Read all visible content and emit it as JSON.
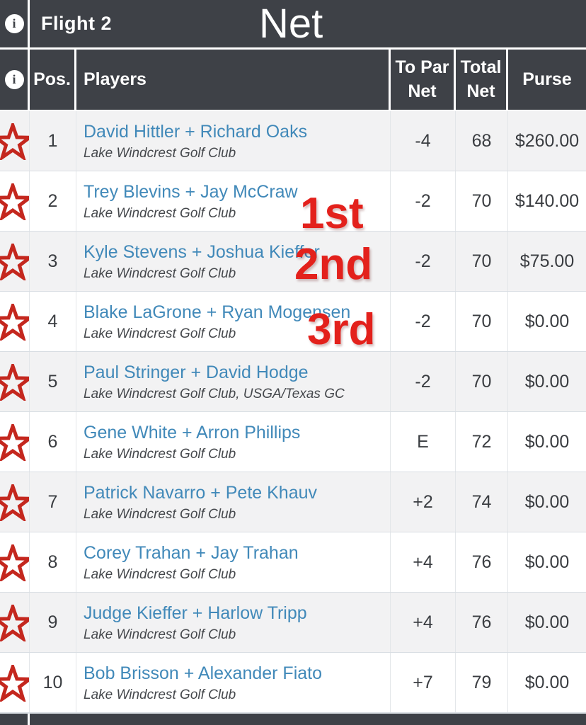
{
  "header": {
    "flight_label": "Flight 2",
    "net_overlay": "Net",
    "info_icon": "info-icon"
  },
  "columns": {
    "pos": "Pos.",
    "players": "Players",
    "to_par_line1": "To Par",
    "to_par_line2": "Net",
    "total_line1": "Total",
    "total_line2": "Net",
    "purse": "Purse"
  },
  "icons": {
    "favorite": "star-outline-icon",
    "info": "info-icon"
  },
  "colors": {
    "header_bg": "#3e4147",
    "row_alt_bg": "#f2f2f3",
    "row_bg": "#ffffff",
    "link_blue": "#4189b9",
    "star_red": "#c4271e",
    "annotation_red": "#e3211c",
    "text_dark": "#3a3d41",
    "border_light": "#d9dee3"
  },
  "rows": [
    {
      "pos": "1",
      "players": "David Hittler + Richard Oaks",
      "club": "Lake Windcrest Golf Club",
      "to_par": "-4",
      "total": "68",
      "purse": "$260.00"
    },
    {
      "pos": "2",
      "players": "Trey Blevins + Jay McCraw",
      "club": "Lake Windcrest Golf Club",
      "to_par": "-2",
      "total": "70",
      "purse": "$140.00",
      "annotation": "1st"
    },
    {
      "pos": "3",
      "players": "Kyle Stevens + Joshua Kieffer",
      "club": "Lake Windcrest Golf Club",
      "to_par": "-2",
      "total": "70",
      "purse": "$75.00",
      "annotation": "2nd"
    },
    {
      "pos": "4",
      "players": "Blake LaGrone + Ryan Mogensen",
      "club": "Lake Windcrest Golf Club",
      "to_par": "-2",
      "total": "70",
      "purse": "$0.00",
      "annotation": "3rd"
    },
    {
      "pos": "5",
      "players": "Paul Stringer + David Hodge",
      "club": "Lake Windcrest Golf Club, USGA/Texas GC",
      "to_par": "-2",
      "total": "70",
      "purse": "$0.00"
    },
    {
      "pos": "6",
      "players": "Gene White + Arron Phillips",
      "club": "Lake Windcrest Golf Club",
      "to_par": "E",
      "total": "72",
      "purse": "$0.00"
    },
    {
      "pos": "7",
      "players": "Patrick Navarro + Pete Khauv",
      "club": "Lake Windcrest Golf Club",
      "to_par": "+2",
      "total": "74",
      "purse": "$0.00"
    },
    {
      "pos": "8",
      "players": "Corey Trahan + Jay Trahan",
      "club": "Lake Windcrest Golf Club",
      "to_par": "+4",
      "total": "76",
      "purse": "$0.00"
    },
    {
      "pos": "9",
      "players": "Judge Kieffer + Harlow Tripp",
      "club": "Lake Windcrest Golf Club",
      "to_par": "+4",
      "total": "76",
      "purse": "$0.00"
    },
    {
      "pos": "10",
      "players": "Bob Brisson + Alexander Fiato",
      "club": "Lake Windcrest Golf Club",
      "to_par": "+7",
      "total": "79",
      "purse": "$0.00"
    }
  ]
}
